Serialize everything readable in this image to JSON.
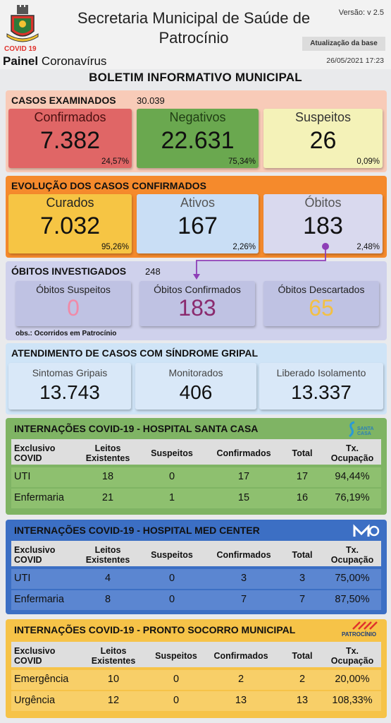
{
  "header": {
    "title": "Secretaria Municipal de Saúde de Patrocínio",
    "version": "Versão: v 2.5",
    "update_label": "Atualização da base",
    "update_date": "26/05/2021 17:23",
    "covid_tag": "COVID 19",
    "panel_bold": "Painel",
    "panel_rest": " Coronavírus"
  },
  "bulletin_title": "BOLETIM INFORMATIVO MUNICIPAL",
  "colors": {
    "red": "#e06666",
    "green": "#6aa84f",
    "yellow": "#f6f2b4",
    "orange": "#f58a2c",
    "blue": "#c9def5",
    "lavender": "#cfcfe8",
    "purple": "#8e3fb7",
    "gold": "#f3c044"
  },
  "examined": {
    "title": "CASOS EXAMINADOS",
    "total": "30.039",
    "confirmed": {
      "label": "Confirmados",
      "value": "7.382",
      "pct": "24,57%"
    },
    "negative": {
      "label": "Negativos",
      "value": "22.631",
      "pct": "75,34%"
    },
    "suspect": {
      "label": "Suspeitos",
      "value": "26",
      "pct": "0,09%"
    }
  },
  "evolution": {
    "title": "EVOLUÇÃO DOS CASOS CONFIRMADOS",
    "cured": {
      "label": "Curados",
      "value": "7.032",
      "pct": "95,26%"
    },
    "active": {
      "label": "Ativos",
      "value": "167",
      "pct": "2,26%"
    },
    "deaths": {
      "label": "Óbitos",
      "value": "183",
      "pct": "2,48%"
    }
  },
  "deaths_investigated": {
    "title": "ÓBITOS INVESTIGADOS",
    "total": "248",
    "suspect": {
      "label": "Óbitos Suspeitos",
      "value": "0"
    },
    "confirmed": {
      "label": "Óbitos Confirmados",
      "value": "183"
    },
    "discarded": {
      "label": "Óbitos Descartados",
      "value": "65"
    },
    "note": "obs.: Ocorridos em Patrocínio"
  },
  "flu": {
    "title": "ATENDIMENTO DE CASOS COM SÍNDROME GRIPAL",
    "symptoms": {
      "label": "Sintomas Gripais",
      "value": "13.743"
    },
    "monitored": {
      "label": "Monitorados",
      "value": "406"
    },
    "released": {
      "label": "Liberado Isolamento",
      "value": "13.337"
    }
  },
  "columns": {
    "c1a": "Exclusivo",
    "c1b": "COVID",
    "c2a": "Leitos",
    "c2b": "Existentes",
    "c3": "Suspeitos",
    "c4": "Confirmados",
    "c5": "Total",
    "c6a": "Tx.",
    "c6b": "Ocupação"
  },
  "santa_casa": {
    "title": "INTERNAÇÕES COVID-19 - HOSPITAL SANTA CASA",
    "logo_text": "SANTA CASA",
    "rows": [
      {
        "name": "UTI",
        "beds": "18",
        "suspects": "0",
        "confirmed": "17",
        "total": "17",
        "rate": "94,44%"
      },
      {
        "name": "Enfermaria",
        "beds": "21",
        "suspects": "1",
        "confirmed": "15",
        "total": "16",
        "rate": "76,19%"
      }
    ]
  },
  "med_center": {
    "title": "INTERNAÇÕES COVID-19 - HOSPITAL MED CENTER",
    "rows": [
      {
        "name": "UTI",
        "beds": "4",
        "suspects": "0",
        "confirmed": "3",
        "total": "3",
        "rate": "75,00%"
      },
      {
        "name": "Enfermaria",
        "beds": "8",
        "suspects": "0",
        "confirmed": "7",
        "total": "7",
        "rate": "87,50%"
      }
    ]
  },
  "pronto_socorro": {
    "title": "INTERNAÇÕES COVID-19 - PRONTO SOCORRO MUNICIPAL",
    "logo_text": "PATROCÍNIO",
    "rows": [
      {
        "name": "Emergência",
        "beds": "10",
        "suspects": "0",
        "confirmed": "2",
        "total": "2",
        "rate": "20,00%"
      },
      {
        "name": "Urgência",
        "beds": "12",
        "suspects": "0",
        "confirmed": "13",
        "total": "13",
        "rate": "108,33%"
      }
    ]
  }
}
